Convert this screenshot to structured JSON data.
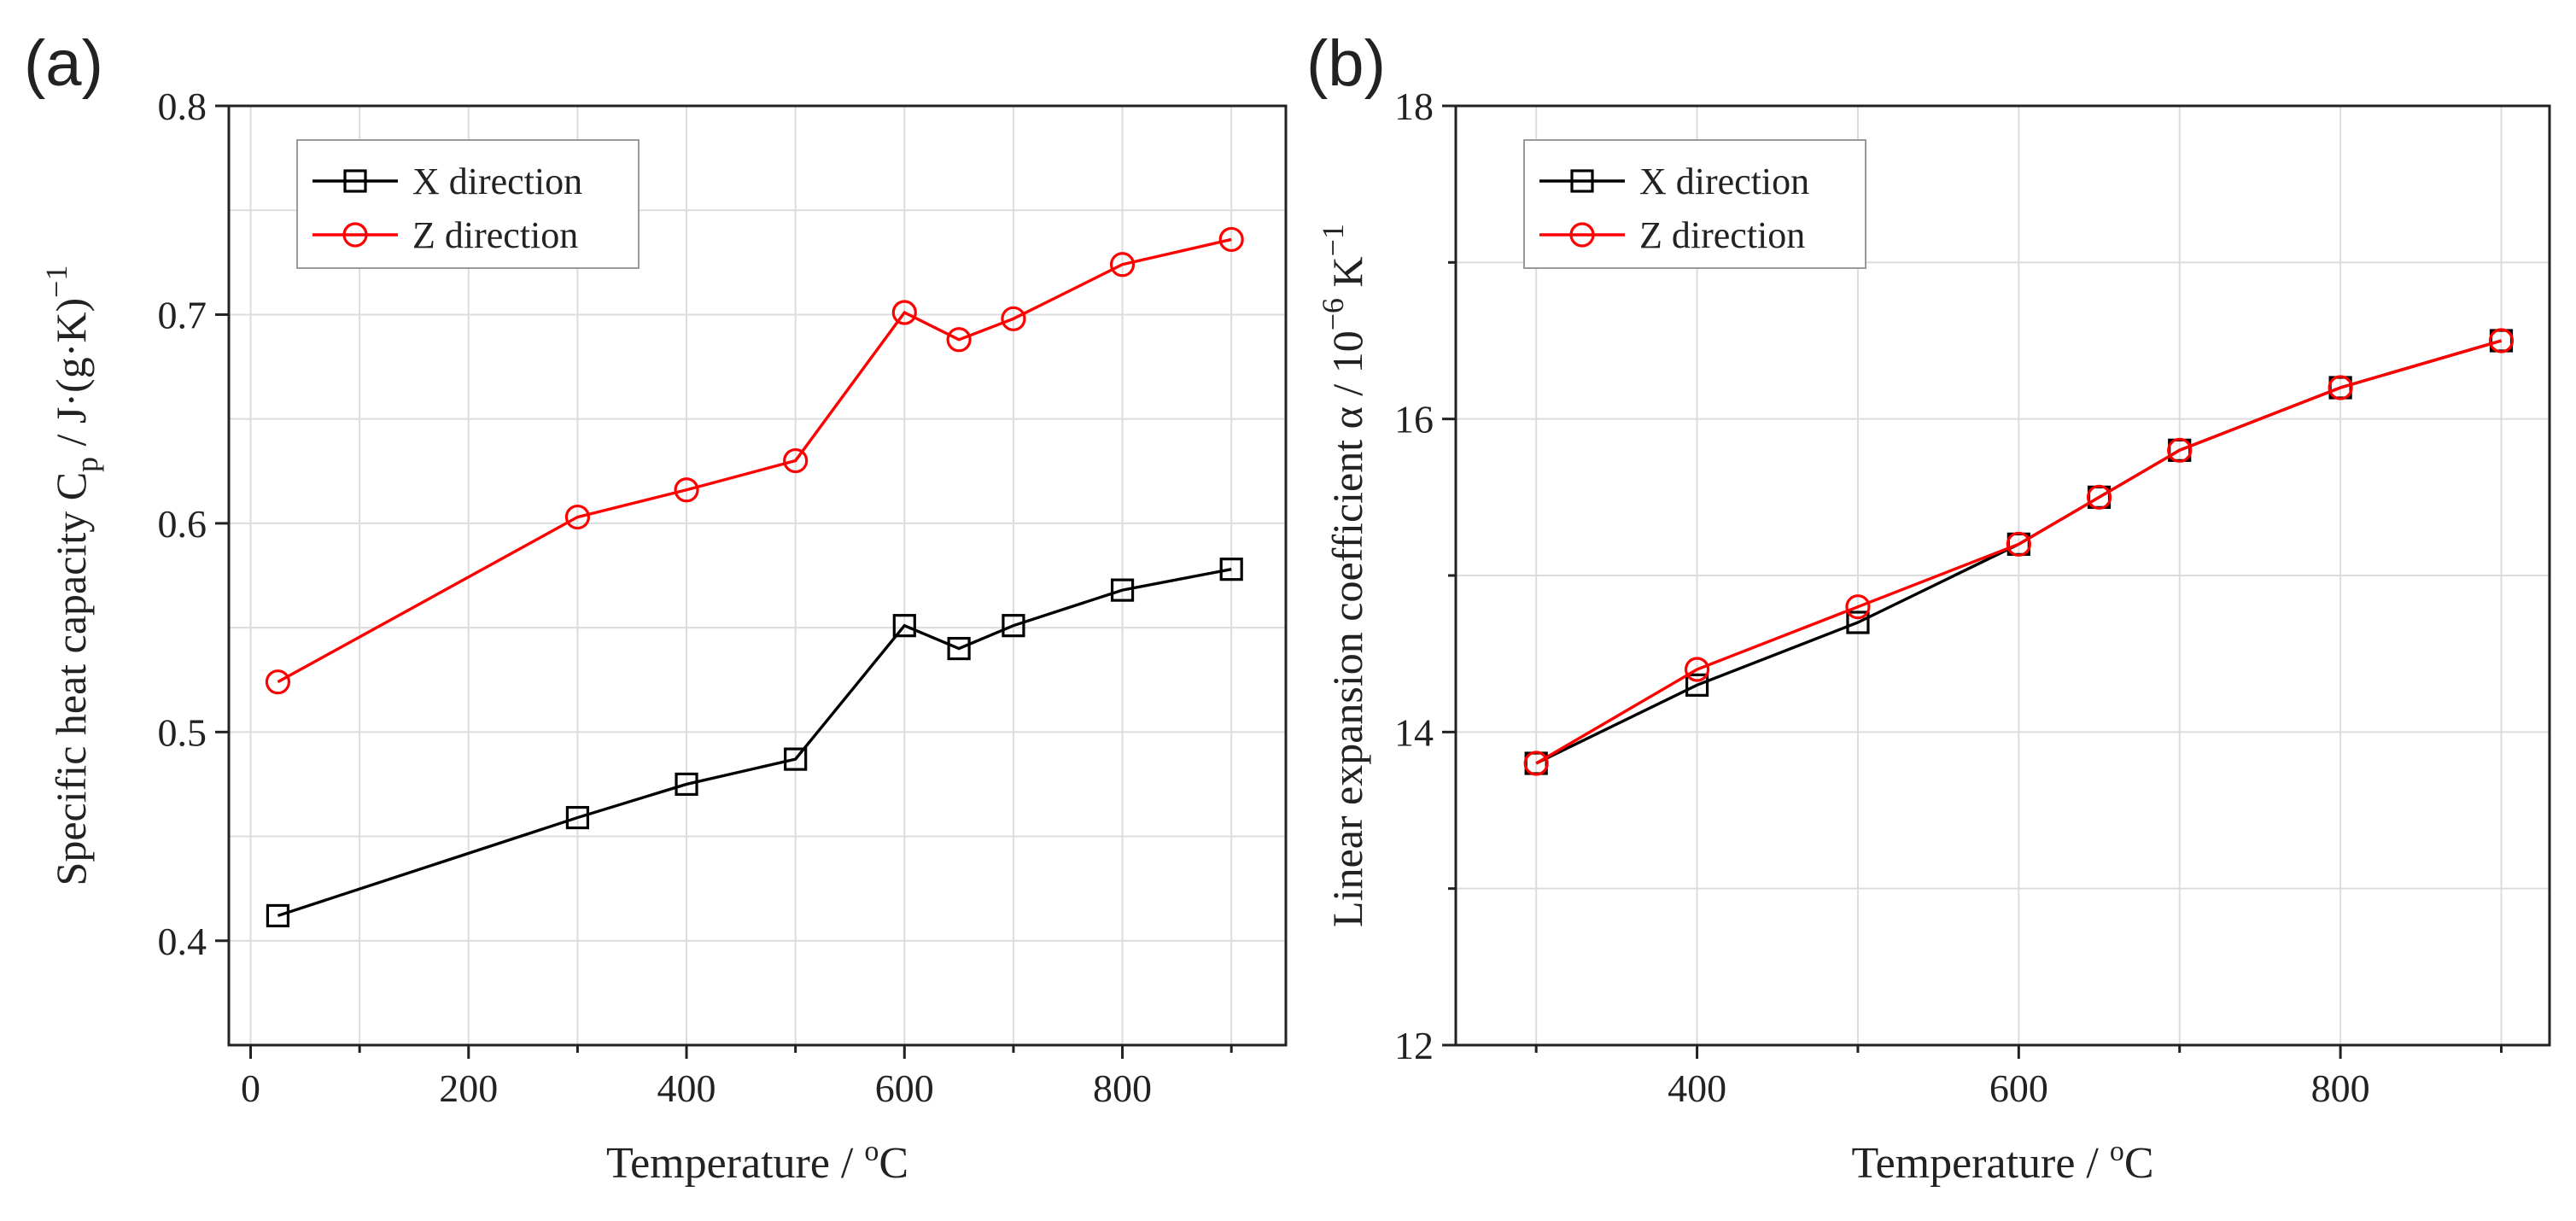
{
  "chart_data": [
    {
      "panel": "(a)",
      "type": "line",
      "xlabel": "Temperature / ",
      "xlabel_unit_sup": "o",
      "xlabel_unit": "C",
      "ylabel_main": "Specific heat capacity C",
      "ylabel_sub": "p",
      "ylabel_unit": " / J·(g·K)",
      "ylabel_sup": "−1",
      "xlim": [
        -20,
        950
      ],
      "ylim": [
        0.35,
        0.8
      ],
      "xticks": [
        0,
        200,
        400,
        600,
        800
      ],
      "xticks_minor": [
        100,
        300,
        500,
        700,
        900
      ],
      "yticks": [
        0.4,
        0.5,
        0.6,
        0.7,
        0.8
      ],
      "ytick_labels": [
        "0.4",
        "0.5",
        "0.6",
        "0.7",
        "0.8"
      ],
      "grid": true,
      "legend_position": "top-left",
      "series": [
        {
          "name": "X direction",
          "color": "#000000",
          "marker": "square",
          "x": [
            25,
            300,
            400,
            500,
            600,
            650,
            700,
            800,
            900
          ],
          "y": [
            0.412,
            0.459,
            0.475,
            0.487,
            0.551,
            0.54,
            0.551,
            0.568,
            0.578
          ]
        },
        {
          "name": "Z direction",
          "color": "#ff0000",
          "marker": "circle",
          "x": [
            25,
            300,
            400,
            500,
            600,
            650,
            700,
            800,
            900
          ],
          "y": [
            0.524,
            0.603,
            0.616,
            0.63,
            0.701,
            0.688,
            0.698,
            0.724,
            0.736
          ]
        }
      ]
    },
    {
      "panel": "(b)",
      "type": "line",
      "xlabel": "Temperature / ",
      "xlabel_unit_sup": "o",
      "xlabel_unit": "C",
      "ylabel_main": "Linear expansion coefficient α / 10",
      "ylabel_sup1": "−6",
      "ylabel_mid": " K",
      "ylabel_sup2": "−1",
      "xlim": [
        250,
        930
      ],
      "ylim": [
        12,
        18
      ],
      "xticks": [
        400,
        600,
        800
      ],
      "xticks_minor": [
        300,
        500,
        700,
        900
      ],
      "yticks": [
        12,
        14,
        16,
        18
      ],
      "yticks_minor": [
        13,
        15,
        17
      ],
      "ytick_labels": [
        "12",
        "14",
        "16",
        "18"
      ],
      "grid": true,
      "legend_position": "top-left",
      "series": [
        {
          "name": "X direction",
          "color": "#000000",
          "marker": "square",
          "x": [
            300,
            400,
            500,
            600,
            650,
            700,
            800,
            900
          ],
          "y": [
            13.8,
            14.3,
            14.7,
            15.2,
            15.5,
            15.8,
            16.2,
            16.5
          ]
        },
        {
          "name": "Z direction",
          "color": "#ff0000",
          "marker": "circle",
          "x": [
            300,
            400,
            500,
            600,
            650,
            700,
            800,
            900
          ],
          "y": [
            13.8,
            14.4,
            14.8,
            15.2,
            15.5,
            15.8,
            16.2,
            16.5
          ]
        }
      ]
    }
  ]
}
